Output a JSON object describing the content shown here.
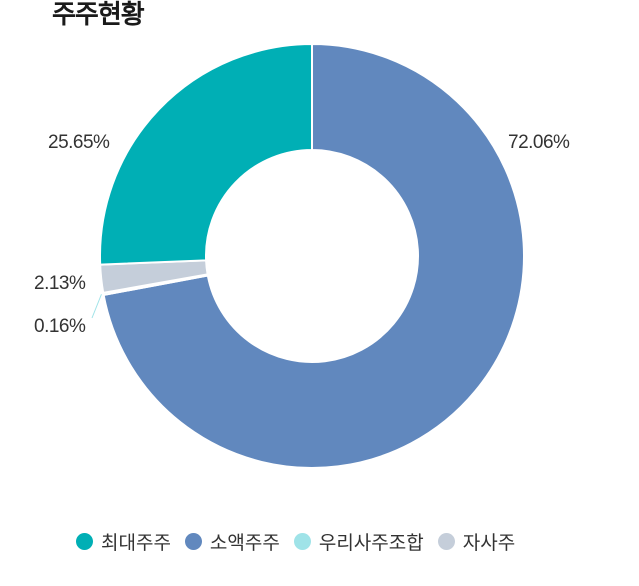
{
  "title": "주주현황",
  "chart_data": {
    "type": "pie",
    "title": "주주현황",
    "categories": [
      "소액주주",
      "우리사주조합",
      "자사주",
      "최대주주"
    ],
    "values": [
      72.06,
      0.16,
      2.13,
      25.65
    ],
    "labels": [
      "72.06%",
      "0.16%",
      "2.13%",
      "25.65%"
    ],
    "colors": [
      "#6188be",
      "#9fe3e8",
      "#c5ceda",
      "#00afb5"
    ],
    "legend": [
      "최대주주",
      "소액주주",
      "우리사주조합",
      "자사주"
    ],
    "legend_colors": [
      "#00afb5",
      "#6188be",
      "#9fe3e8",
      "#c5ceda"
    ],
    "legend_position": "bottom"
  }
}
